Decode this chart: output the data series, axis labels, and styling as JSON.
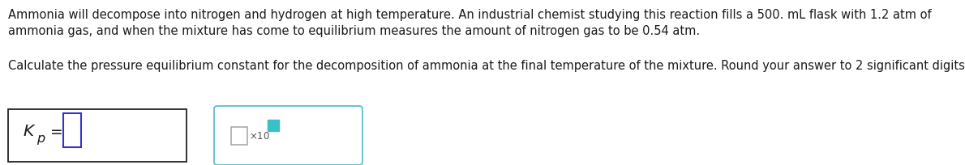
{
  "line1": "Ammonia will decompose into nitrogen and hydrogen at high temperature. An industrial chemist studying this reaction fills a 500. mL flask with 1.2 atm of",
  "line2": "ammonia gas, and when the mixture has come to equilibrium measures the amount of nitrogen gas to be 0.54 atm.",
  "line3": "Calculate the pressure equilibrium constant for the decomposition of ammonia at the final temperature of the mixture. Round your answer to 2 significant digits.",
  "text_color": "#1a1a1a",
  "background_color": "#ffffff",
  "font_size": 10.5,
  "box_edge_color1": "#222222",
  "box_edge_color2": "#5bbfc8",
  "box_bg": "#ffffff",
  "input_box_color": "#3333cc",
  "x10_color": "#3bbfc8",
  "small_box_color": "#aaaaaa",
  "sup_box_color": "#3bbfc8"
}
